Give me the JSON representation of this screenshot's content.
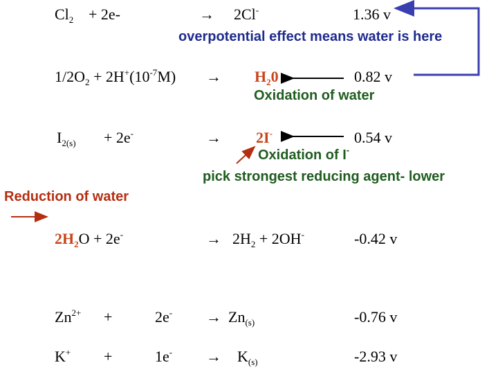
{
  "rows": {
    "cl": {
      "reactant": "Cl",
      "sub": "2",
      "plus": "+ 2e-",
      "arrow": "→",
      "product": "2Cl",
      "sup": "-",
      "potential": "1.36 v"
    },
    "o2": {
      "left_a": "1/2O",
      "left_sub": "2",
      "left_b": " +  2H",
      "left_sup1": "+",
      "left_c": "(10",
      "left_sup2": "-7",
      "left_d": "M)",
      "arrow": "→",
      "product_a": "H",
      "product_sub": "2",
      "product_b": "0",
      "potential": "0.82 v"
    },
    "i2": {
      "reactant": "I",
      "sub": "2(s)",
      "plus": "+   2e",
      "plus_sup": "-",
      "arrow": "→",
      "product": "2I",
      "product_sup": "-",
      "potential": "0.54 v"
    },
    "h2o": {
      "a": "2H",
      "sub": "2",
      "b": "O  +  2e",
      "sup": "-",
      "arrow": "→",
      "prod_a": "2H",
      "prod_sub": "2",
      "prod_b": "  +   2OH",
      "prod_sup": "-",
      "potential": "-0.42 v"
    },
    "zn": {
      "a": "Zn",
      "sup": "2+",
      "plus": "+",
      "e": "2e",
      "e_sup": "-",
      "arrow": "→",
      "prod": "Zn",
      "prod_sub": "(s)",
      "potential": "-0.76 v"
    },
    "k": {
      "a": "K",
      "sup": "+",
      "plus": "+",
      "e": "1e",
      "e_sup": "-",
      "arrow": "→",
      "prod": "K",
      "prod_sub": "(s)",
      "potential": "-2.93 v"
    }
  },
  "notes": {
    "overpotential": "overpotential effect means water is here",
    "oxidation_water": "Oxidation of water",
    "oxidation_i_a": "Oxidation of I",
    "oxidation_i_sup": "-",
    "pick": "pick strongest reducing agent- lower",
    "reduction_water": "Reduction of water"
  },
  "colors": {
    "blue_note": "#1f2b8f",
    "green_note": "#1f5c1f",
    "orange_species": "#c8441a",
    "red_label": "#b52e12",
    "bracket": "#3a3fb0"
  }
}
